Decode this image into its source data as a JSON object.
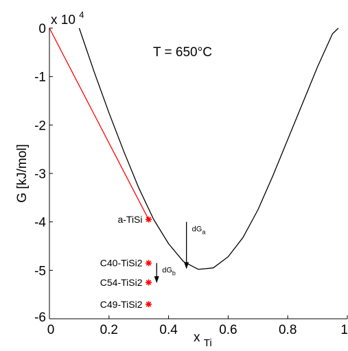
{
  "chart_data": {
    "type": "line",
    "title": "",
    "annotation_title": "T = 650°C",
    "xlabel_main": "x",
    "xlabel_sub": "Ti",
    "ylabel": "G [kJ/mol]",
    "y_multiplier_base": "x 10",
    "y_multiplier_exp": "4",
    "xlim": [
      0,
      1
    ],
    "ylim": [
      -60000,
      0
    ],
    "x_ticks": [
      0,
      0.2,
      0.4,
      0.6,
      0.8,
      1
    ],
    "x_tick_labels": [
      "0",
      "0.2",
      "0.4",
      "0.6",
      "0.8",
      "1"
    ],
    "y_ticks": [
      0,
      -10000,
      -20000,
      -30000,
      -40000,
      -50000,
      -60000
    ],
    "y_tick_labels": [
      "0",
      "-1",
      "-2",
      "-3",
      "-4",
      "-5",
      "-6"
    ],
    "grid": false,
    "series": [
      {
        "color": "#000000",
        "x": [
          0.1,
          0.15,
          0.2,
          0.25,
          0.3,
          0.35,
          0.4,
          0.45,
          0.5,
          0.55,
          0.6,
          0.65,
          0.7,
          0.75,
          0.8,
          0.85,
          0.9,
          0.95,
          0.97
        ],
        "y": [
          0,
          -9000,
          -17500,
          -25500,
          -33000,
          -39500,
          -44500,
          -48200,
          -49800,
          -49500,
          -47200,
          -43200,
          -37500,
          -30500,
          -23000,
          -15500,
          -8000,
          -1200,
          0
        ]
      },
      {
        "color": "#ff0000",
        "x": [
          0,
          0.333
        ],
        "y": [
          0,
          -39500
        ]
      }
    ],
    "points": [
      {
        "label": "a-TiSi",
        "x": 0.333,
        "y": -39500
      },
      {
        "label": "C40-TiSi2",
        "x": 0.333,
        "y": -48500
      },
      {
        "label": "C54-TiSi2",
        "x": 0.333,
        "y": -52500
      },
      {
        "label": "C49-TiSi2",
        "x": 0.333,
        "y": -57000
      }
    ],
    "point_color": "#ff0000",
    "arrows": [
      {
        "label_main": "dG",
        "label_sub": "a",
        "x": 0.46,
        "y_from": -40000,
        "y_to": -49600
      },
      {
        "label_main": "dG",
        "label_sub": "b",
        "x": 0.36,
        "y_from": -48500,
        "y_to": -52500
      }
    ]
  }
}
